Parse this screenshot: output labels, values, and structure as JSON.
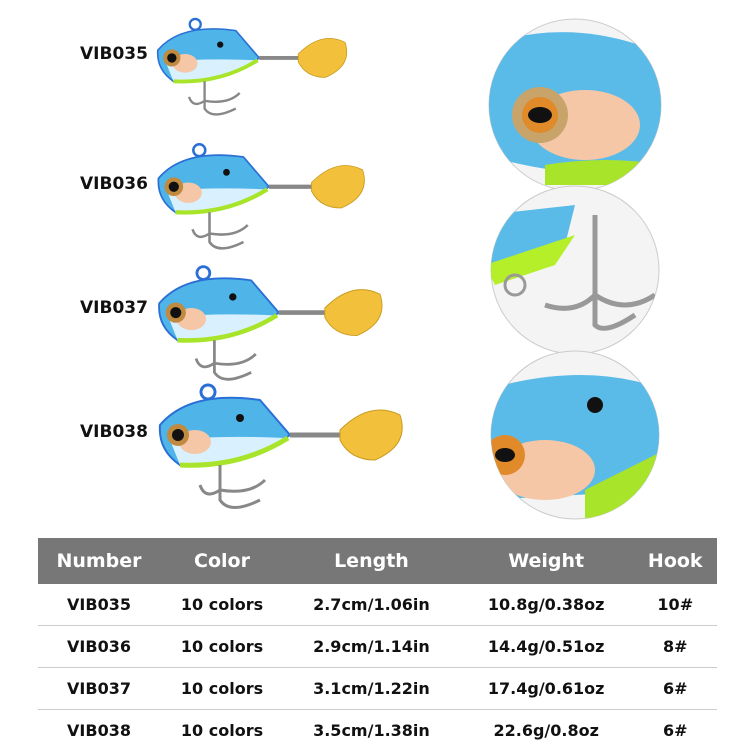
{
  "models": [
    "VIB035",
    "VIB036",
    "VIB037",
    "VIB038"
  ],
  "colors": {
    "body": "#4fb4e8",
    "belly": "#d9f0ff",
    "accent": "#a8e52a",
    "blade": "#f2c03a",
    "header_bg": "#777777"
  },
  "table": {
    "headers": [
      "Number",
      "Color",
      "Length",
      "Weight",
      "Hook"
    ],
    "rows": [
      [
        "VIB035",
        "10 colors",
        "2.7cm/1.06in",
        "10.8g/0.38oz",
        "10#"
      ],
      [
        "VIB036",
        "10 colors",
        "2.9cm/1.14in",
        "14.4g/0.51oz",
        "8#"
      ],
      [
        "VIB037",
        "10 colors",
        "3.1cm/1.22in",
        "17.4g/0.61oz",
        "6#"
      ],
      [
        "VIB038",
        "10 colors",
        "3.5cm/1.38in",
        "22.6g/0.8oz",
        "6#"
      ]
    ]
  }
}
